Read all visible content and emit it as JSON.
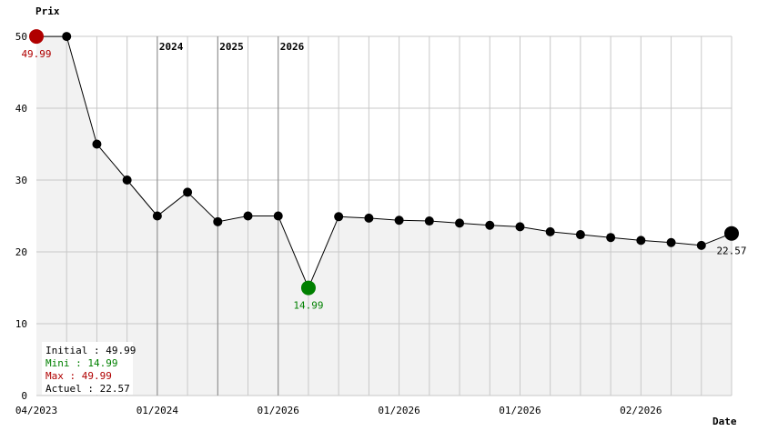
{
  "chart_data": {
    "type": "line",
    "y_label": "Prix",
    "x_label": "Date",
    "categories": [
      "04/2023",
      null,
      null,
      null,
      "01/2024",
      null,
      null,
      null,
      "01/2026",
      null,
      null,
      null,
      "01/2026",
      null,
      null,
      null,
      "01/2026",
      null,
      null,
      null,
      "02/2026",
      null,
      null,
      null
    ],
    "values": [
      49.99,
      49.99,
      35,
      30,
      25,
      28.3,
      24.2,
      25,
      25,
      14.99,
      24.9,
      24.7,
      24.4,
      24.3,
      24.0,
      23.7,
      23.5,
      22.8,
      22.4,
      22.0,
      21.6,
      21.3,
      20.9,
      22.57
    ],
    "color": "#000000",
    "area_color": "#f2f2f2",
    "ylim": [
      0,
      50
    ],
    "yticks": [
      0,
      10,
      20,
      30,
      40,
      50
    ],
    "grid": true,
    "highlights": [
      {
        "index": 0,
        "color": "#b00000",
        "label_below": true
      },
      {
        "index": 9,
        "color": "#008000",
        "label_below": true
      },
      {
        "index": 23,
        "color": "#000000",
        "label_below": true
      }
    ],
    "annotations": [
      {
        "text": "2024",
        "index": 4
      },
      {
        "text": "2025",
        "index": 6
      },
      {
        "text": "2026",
        "index": 8
      }
    ],
    "stats": [
      {
        "text": "Initial : 49.99",
        "color": "#000000"
      },
      {
        "text": "Mini : 14.99",
        "color": "#008000"
      },
      {
        "text": "Max : 49.99",
        "color": "#b00000"
      },
      {
        "text": "Actuel : 22.57",
        "color": "#000000"
      }
    ]
  }
}
